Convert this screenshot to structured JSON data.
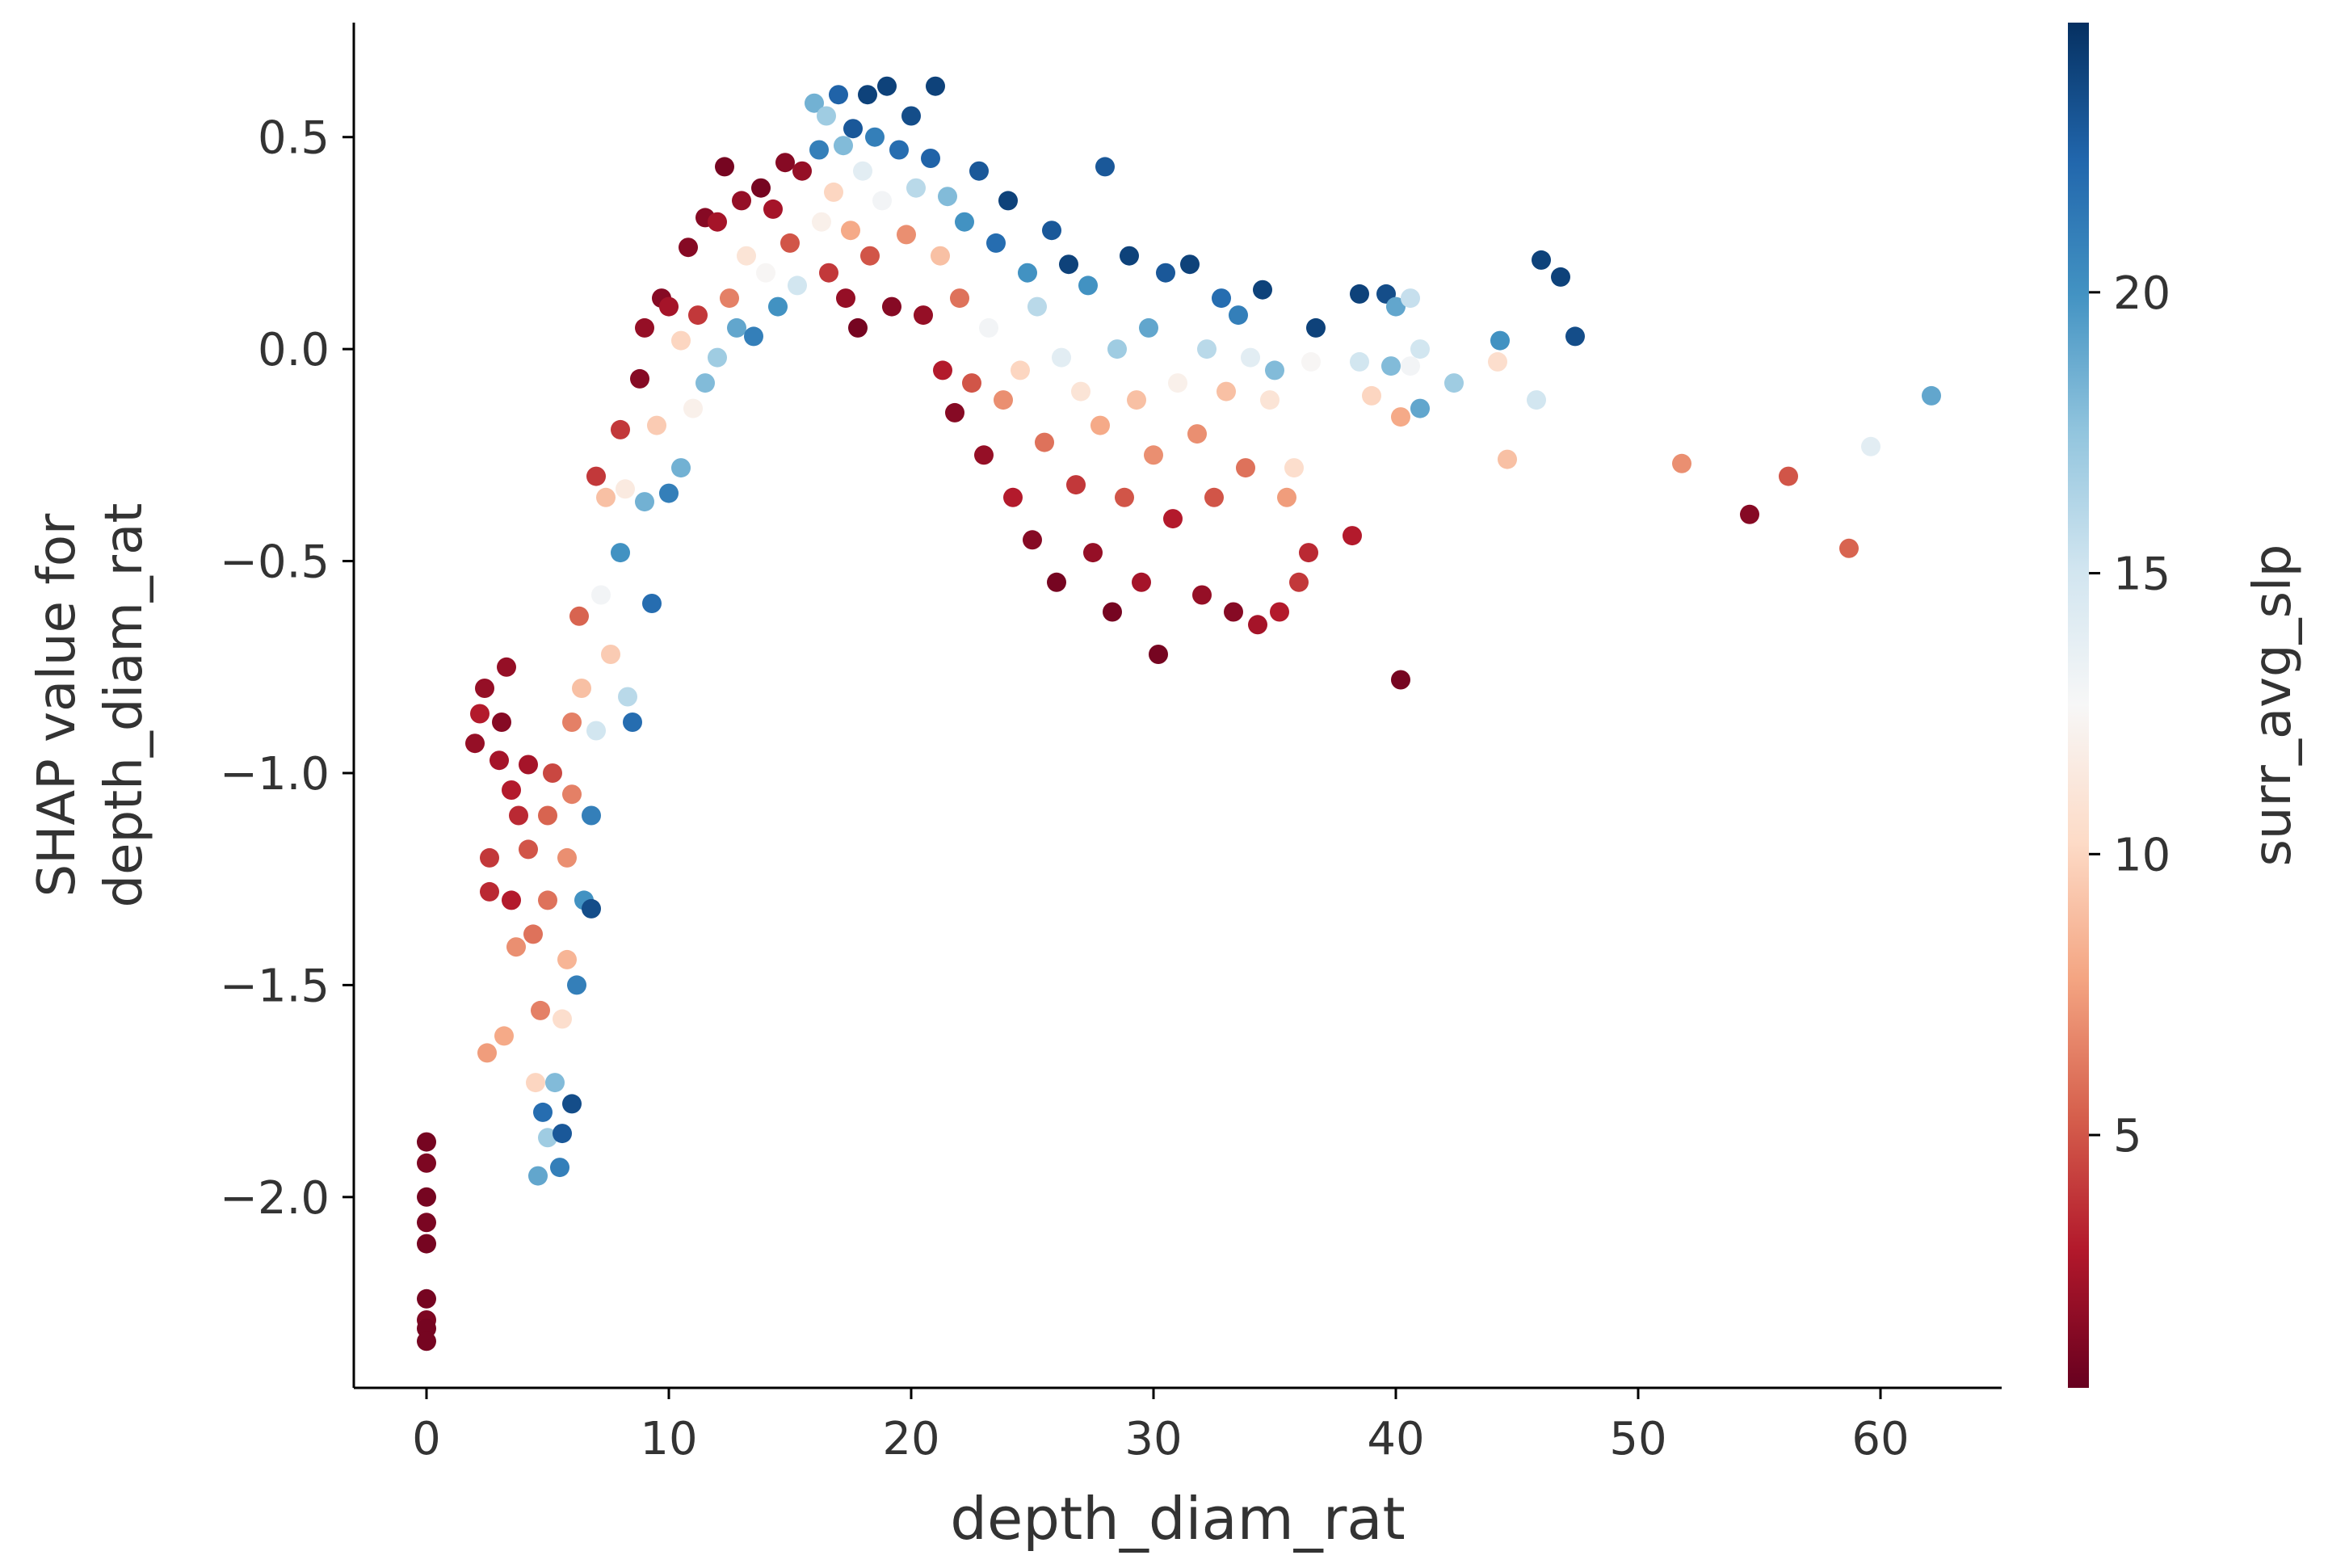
{
  "chart_data": {
    "type": "scatter",
    "title": "",
    "xlabel": "depth_diam_rat",
    "ylabel_lines": [
      "SHAP value for",
      "depth_diam_rat"
    ],
    "xlim": [
      -3,
      65
    ],
    "ylim": [
      -2.45,
      0.77
    ],
    "xticks": [
      0,
      10,
      20,
      30,
      40,
      50,
      60
    ],
    "xtick_labels": [
      "0",
      "10",
      "20",
      "30",
      "40",
      "50",
      "60"
    ],
    "yticks": [
      0.5,
      0.0,
      -0.5,
      -1.0,
      -1.5,
      -2.0
    ],
    "ytick_labels": [
      "0.5",
      "0.0",
      "−0.5",
      "−1.0",
      "−1.5",
      "−2.0"
    ],
    "grid": false,
    "colorbar": {
      "label": "surr_avg_slp",
      "range": [
        0.5,
        24.8
      ],
      "ticks": [
        5,
        10,
        15,
        20
      ],
      "tick_labels": [
        "5",
        "10",
        "15",
        "20"
      ],
      "colormap": "RdBu",
      "colors": [
        "#67001f",
        "#b2182b",
        "#d6604d",
        "#f4a582",
        "#fddbc7",
        "#f7f7f7",
        "#d1e5f0",
        "#92c5de",
        "#4393c3",
        "#2166ac",
        "#053061"
      ]
    },
    "points": [
      [
        0.0,
        -1.87,
        1.0
      ],
      [
        0.0,
        -1.92,
        1.2
      ],
      [
        0.0,
        -2.0,
        1.0
      ],
      [
        0.0,
        -2.06,
        1.1
      ],
      [
        0.0,
        -2.11,
        1.0
      ],
      [
        0.0,
        -2.24,
        1.0
      ],
      [
        0.0,
        -2.29,
        1.2
      ],
      [
        0.0,
        -2.31,
        1.0
      ],
      [
        0.0,
        -2.34,
        1.0
      ],
      [
        2.0,
        -0.93,
        2.0
      ],
      [
        2.2,
        -0.86,
        3.0
      ],
      [
        2.4,
        -0.8,
        2.0
      ],
      [
        2.6,
        -1.2,
        4.0
      ],
      [
        2.6,
        -1.28,
        3.5
      ],
      [
        2.5,
        -1.66,
        7.5
      ],
      [
        3.0,
        -0.97,
        2.5
      ],
      [
        3.1,
        -0.88,
        1.5
      ],
      [
        3.3,
        -0.75,
        2.0
      ],
      [
        3.5,
        -1.04,
        3.0
      ],
      [
        3.5,
        -1.3,
        3.0
      ],
      [
        3.2,
        -1.62,
        8.0
      ],
      [
        3.7,
        -1.41,
        7.0
      ],
      [
        3.8,
        -1.1,
        3.5
      ],
      [
        4.2,
        -0.98,
        2.5
      ],
      [
        4.2,
        -1.18,
        5.0
      ],
      [
        4.4,
        -1.38,
        6.0
      ],
      [
        4.5,
        -1.73,
        10.0
      ],
      [
        4.6,
        -1.95,
        19.0
      ],
      [
        4.8,
        -1.8,
        22.0
      ],
      [
        4.7,
        -1.56,
        6.5
      ],
      [
        5.0,
        -1.3,
        6.0
      ],
      [
        5.0,
        -1.1,
        5.5
      ],
      [
        5.2,
        -1.0,
        4.5
      ],
      [
        5.0,
        -1.86,
        17.0
      ],
      [
        5.3,
        -1.73,
        18.0
      ],
      [
        5.5,
        -1.93,
        21.0
      ],
      [
        5.6,
        -1.85,
        23.0
      ],
      [
        5.6,
        -1.58,
        10.5
      ],
      [
        5.8,
        -1.44,
        8.5
      ],
      [
        5.8,
        -1.2,
        7.0
      ],
      [
        6.0,
        -1.05,
        6.5
      ],
      [
        6.0,
        -1.78,
        23.5
      ],
      [
        6.2,
        -1.5,
        21.0
      ],
      [
        6.0,
        -0.88,
        6.5
      ],
      [
        6.3,
        -0.63,
        5.5
      ],
      [
        6.4,
        -0.8,
        9.0
      ],
      [
        6.5,
        -1.3,
        20.0
      ],
      [
        6.8,
        -1.32,
        23.5
      ],
      [
        6.8,
        -1.1,
        21.0
      ],
      [
        7.0,
        -0.9,
        15.0
      ],
      [
        7.2,
        -0.58,
        13.0
      ],
      [
        7.4,
        -0.35,
        9.0
      ],
      [
        7.0,
        -0.3,
        4.0
      ],
      [
        7.6,
        -0.72,
        9.5
      ],
      [
        8.0,
        -0.48,
        20.0
      ],
      [
        8.0,
        -0.19,
        4.0
      ],
      [
        8.3,
        -0.82,
        16.0
      ],
      [
        8.5,
        -0.88,
        22.0
      ],
      [
        8.2,
        -0.33,
        11.5
      ],
      [
        8.8,
        -0.07,
        1.5
      ],
      [
        9.0,
        -0.36,
        18.5
      ],
      [
        9.0,
        0.05,
        2.0
      ],
      [
        9.3,
        -0.6,
        22.0
      ],
      [
        9.5,
        -0.18,
        9.5
      ],
      [
        9.7,
        0.12,
        1.5
      ],
      [
        10.0,
        -0.34,
        21.0
      ],
      [
        10.0,
        0.1,
        2.5
      ],
      [
        10.5,
        -0.28,
        18.5
      ],
      [
        10.5,
        0.02,
        10.0
      ],
      [
        10.8,
        0.24,
        1.5
      ],
      [
        11.0,
        -0.14,
        12.0
      ],
      [
        11.2,
        0.08,
        4.0
      ],
      [
        11.5,
        0.31,
        1.5
      ],
      [
        11.5,
        -0.08,
        18.0
      ],
      [
        12.0,
        0.3,
        2.5
      ],
      [
        12.0,
        -0.02,
        17.0
      ],
      [
        12.3,
        0.43,
        1.0
      ],
      [
        12.5,
        0.12,
        6.5
      ],
      [
        12.8,
        0.05,
        19.0
      ],
      [
        13.0,
        0.35,
        2.0
      ],
      [
        13.2,
        0.22,
        11.0
      ],
      [
        13.5,
        0.03,
        21.0
      ],
      [
        13.8,
        0.38,
        1.0
      ],
      [
        14.0,
        0.18,
        12.5
      ],
      [
        14.3,
        0.33,
        2.5
      ],
      [
        14.5,
        0.1,
        20.0
      ],
      [
        14.8,
        0.44,
        1.5
      ],
      [
        15.0,
        0.25,
        5.0
      ],
      [
        15.3,
        0.15,
        15.0
      ],
      [
        15.5,
        0.42,
        2.0
      ],
      [
        16.0,
        0.58,
        18.5
      ],
      [
        16.2,
        0.47,
        21.0
      ],
      [
        16.3,
        0.3,
        12.0
      ],
      [
        16.5,
        0.55,
        17.0
      ],
      [
        16.6,
        0.18,
        4.0
      ],
      [
        16.8,
        0.37,
        10.0
      ],
      [
        17.0,
        0.6,
        22.5
      ],
      [
        17.2,
        0.48,
        18.0
      ],
      [
        17.3,
        0.12,
        2.0
      ],
      [
        17.5,
        0.28,
        8.0
      ],
      [
        17.6,
        0.52,
        23.0
      ],
      [
        17.8,
        0.05,
        1.0
      ],
      [
        18.0,
        0.42,
        14.0
      ],
      [
        18.2,
        0.6,
        24.0
      ],
      [
        18.3,
        0.22,
        5.0
      ],
      [
        18.5,
        0.5,
        21.0
      ],
      [
        18.8,
        0.35,
        13.0
      ],
      [
        19.0,
        0.62,
        24.0
      ],
      [
        19.2,
        0.1,
        1.5
      ],
      [
        19.5,
        0.47,
        22.0
      ],
      [
        19.8,
        0.27,
        7.0
      ],
      [
        20.0,
        0.55,
        23.5
      ],
      [
        20.2,
        0.38,
        16.0
      ],
      [
        20.5,
        0.08,
        2.0
      ],
      [
        20.8,
        0.45,
        22.5
      ],
      [
        21.0,
        0.62,
        24.0
      ],
      [
        21.2,
        0.22,
        9.0
      ],
      [
        21.3,
        -0.05,
        3.0
      ],
      [
        21.5,
        0.36,
        18.0
      ],
      [
        21.8,
        -0.15,
        1.5
      ],
      [
        22.0,
        0.12,
        6.0
      ],
      [
        22.2,
        0.3,
        20.0
      ],
      [
        22.5,
        -0.08,
        5.0
      ],
      [
        22.8,
        0.42,
        23.0
      ],
      [
        23.0,
        -0.25,
        2.0
      ],
      [
        23.2,
        0.05,
        13.0
      ],
      [
        23.5,
        0.25,
        22.0
      ],
      [
        23.8,
        -0.12,
        7.0
      ],
      [
        24.0,
        0.35,
        24.0
      ],
      [
        24.2,
        -0.35,
        3.0
      ],
      [
        24.5,
        -0.05,
        10.0
      ],
      [
        24.8,
        0.18,
        20.0
      ],
      [
        25.0,
        -0.45,
        1.5
      ],
      [
        25.2,
        0.1,
        16.0
      ],
      [
        25.5,
        -0.22,
        6.0
      ],
      [
        25.8,
        0.28,
        23.0
      ],
      [
        26.0,
        -0.55,
        1.0
      ],
      [
        26.2,
        -0.02,
        14.0
      ],
      [
        26.5,
        0.2,
        24.0
      ],
      [
        26.8,
        -0.32,
        4.0
      ],
      [
        27.0,
        -0.1,
        11.0
      ],
      [
        27.3,
        0.15,
        20.0
      ],
      [
        27.5,
        -0.48,
        2.0
      ],
      [
        27.8,
        -0.18,
        8.0
      ],
      [
        28.0,
        0.43,
        23.0
      ],
      [
        28.3,
        -0.62,
        1.0
      ],
      [
        28.5,
        0.0,
        17.0
      ],
      [
        28.8,
        -0.35,
        5.0
      ],
      [
        29.0,
        0.22,
        24.0
      ],
      [
        29.3,
        -0.12,
        9.0
      ],
      [
        29.5,
        -0.55,
        2.5
      ],
      [
        29.8,
        0.05,
        19.0
      ],
      [
        30.0,
        -0.25,
        7.0
      ],
      [
        30.2,
        -0.72,
        1.0
      ],
      [
        30.5,
        0.18,
        23.0
      ],
      [
        30.8,
        -0.4,
        3.0
      ],
      [
        31.0,
        -0.08,
        12.0
      ],
      [
        31.5,
        0.2,
        24.0
      ],
      [
        31.8,
        -0.2,
        7.0
      ],
      [
        32.0,
        -0.58,
        2.0
      ],
      [
        32.2,
        0.0,
        16.0
      ],
      [
        32.5,
        -0.35,
        5.0
      ],
      [
        32.8,
        0.12,
        22.0
      ],
      [
        33.0,
        -0.1,
        9.0
      ],
      [
        33.3,
        -0.62,
        1.5
      ],
      [
        33.5,
        0.08,
        21.0
      ],
      [
        33.8,
        -0.28,
        6.0
      ],
      [
        34.0,
        -0.02,
        14.0
      ],
      [
        34.3,
        -0.65,
        2.5
      ],
      [
        34.5,
        0.14,
        24.0
      ],
      [
        34.8,
        -0.12,
        11.0
      ],
      [
        35.0,
        -0.05,
        18.0
      ],
      [
        35.2,
        -0.62,
        3.0
      ],
      [
        35.5,
        -0.35,
        7.5
      ],
      [
        35.8,
        -0.28,
        10.5
      ],
      [
        36.0,
        -0.55,
        4.0
      ],
      [
        36.4,
        -0.48,
        3.5
      ],
      [
        36.7,
        0.05,
        24.0
      ],
      [
        36.5,
        -0.03,
        12.5
      ],
      [
        38.2,
        -0.44,
        3.0
      ],
      [
        38.5,
        0.13,
        24.0
      ],
      [
        38.5,
        -0.03,
        15.0
      ],
      [
        39.0,
        -0.11,
        10.0
      ],
      [
        39.6,
        0.13,
        23.5
      ],
      [
        39.8,
        -0.04,
        18.0
      ],
      [
        40.2,
        -0.78,
        1.0
      ],
      [
        40.0,
        0.1,
        19.0
      ],
      [
        40.2,
        -0.16,
        8.0
      ],
      [
        40.6,
        -0.04,
        13.0
      ],
      [
        40.6,
        0.12,
        15.5
      ],
      [
        41.0,
        0.0,
        15.0
      ],
      [
        41.0,
        -0.14,
        19.0
      ],
      [
        42.4,
        -0.08,
        17.0
      ],
      [
        44.2,
        -0.03,
        10.5
      ],
      [
        44.3,
        0.02,
        20.0
      ],
      [
        44.6,
        -0.26,
        9.0
      ],
      [
        45.8,
        -0.12,
        15.0
      ],
      [
        46.0,
        0.21,
        24.0
      ],
      [
        46.8,
        0.17,
        24.0
      ],
      [
        47.4,
        0.03,
        23.5
      ],
      [
        51.8,
        -0.27,
        7.0
      ],
      [
        54.6,
        -0.39,
        1.5
      ],
      [
        56.2,
        -0.3,
        5.0
      ],
      [
        58.7,
        -0.47,
        5.5
      ],
      [
        59.6,
        -0.23,
        14.0
      ],
      [
        62.1,
        -0.11,
        19.0
      ]
    ]
  }
}
